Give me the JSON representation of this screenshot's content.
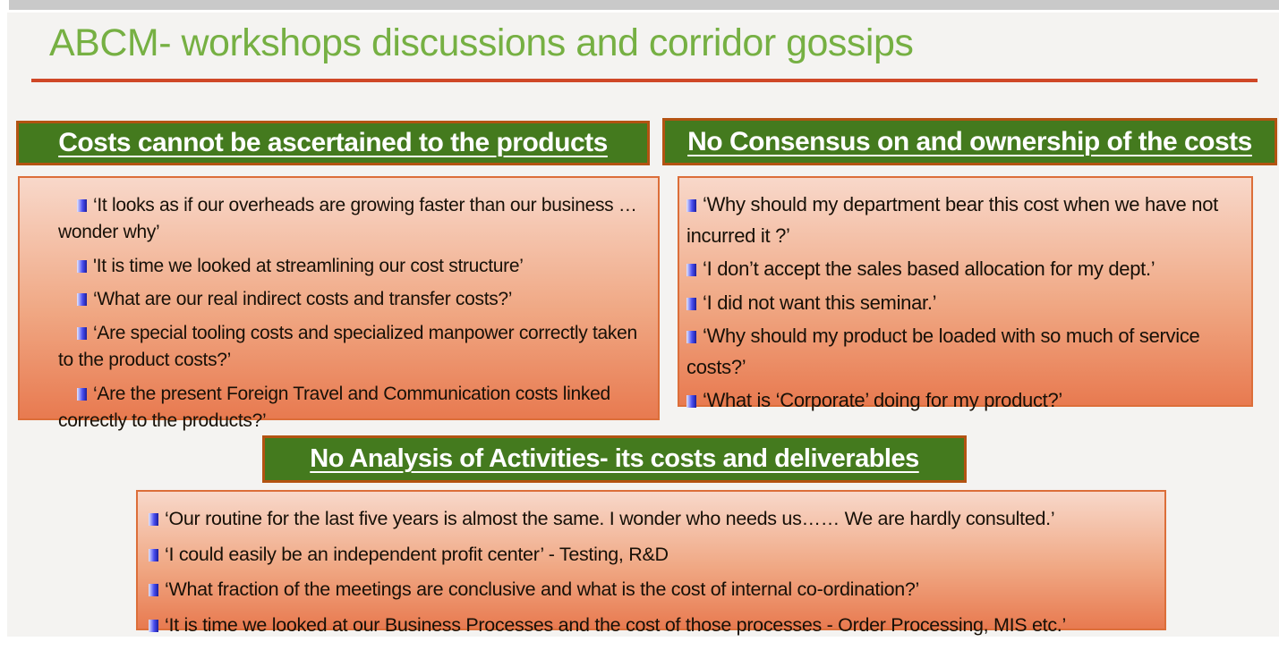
{
  "slide": {
    "title": "ABCM- workshops discussions and corridor gossips"
  },
  "colors": {
    "title_green": "#76b043",
    "rule_red": "#cf4727",
    "header_bg_green": "#447a1e",
    "header_border_orange": "#b35312",
    "box_border_orange": "#dc6e39",
    "box_gradient_top": "#f8d8ca",
    "box_gradient_bottom": "#e87a50",
    "bullet_blue": "#2e31d8",
    "slide_bg": "#f4f3f1"
  },
  "panels": {
    "left": {
      "header": "Costs cannot be ascertained to the products",
      "bullets": [
        "‘It looks as if our overheads are growing faster than our business … wonder why’",
        "'It is time we looked at streamlining our cost structure’",
        "‘What are our real indirect costs and transfer costs?’",
        "‘Are special tooling costs and specialized manpower correctly taken to the product costs?’",
        "‘Are the present Foreign Travel and Communication costs linked correctly to the products?’"
      ]
    },
    "right": {
      "header": "No Consensus on and ownership of the costs",
      "bullets": [
        "‘Why should my department bear this cost when we have not incurred it ?’",
        "‘I don’t accept the sales based allocation for my dept.’",
        "‘I did not want this seminar.’",
        "‘Why should my product be loaded with so much of service costs?’",
        "‘What is ‘Corporate’ doing for my product?’"
      ]
    },
    "bottom": {
      "header": "No Analysis of Activities- its costs and deliverables",
      "bullets": [
        "‘Our routine for the last five years is almost the same. I wonder who needs us…… We are hardly consulted.’",
        "‘I could easily be an independent profit center’ - Testing, R&D",
        "‘What fraction of the meetings are conclusive and what is the cost of internal co-ordination?’",
        "‘It is time we looked at our Business Processes and the cost of those processes - Order Processing, MIS etc.’"
      ]
    }
  }
}
